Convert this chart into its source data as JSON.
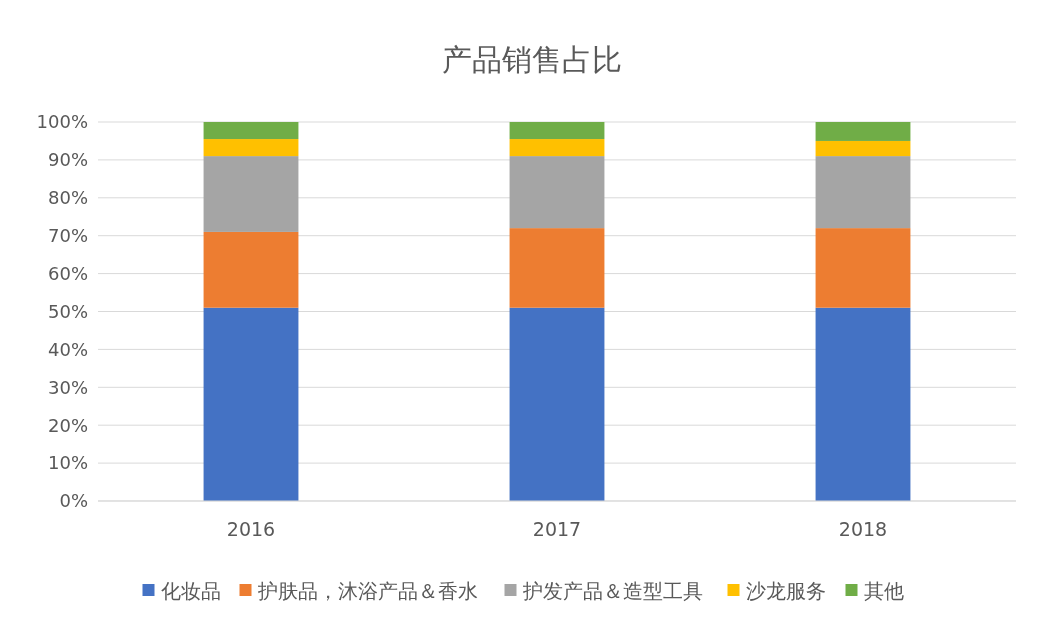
{
  "chart_data": {
    "type": "bar",
    "title": "产品销售占比",
    "stacked": true,
    "categories": [
      "2016",
      "2017",
      "2018"
    ],
    "series": [
      {
        "name": "化妆品",
        "color": "#4472c4",
        "values": [
          51,
          51,
          51
        ]
      },
      {
        "name": "护肤品，沐浴产品＆香水",
        "color": "#ed7d31",
        "values": [
          20,
          21,
          21
        ]
      },
      {
        "name": "护发产品＆造型工具",
        "color": "#a5a5a5",
        "values": [
          20,
          19,
          19
        ]
      },
      {
        "name": "沙龙服务",
        "color": "#ffc000",
        "values": [
          4.5,
          4.5,
          4
        ]
      },
      {
        "name": "其他",
        "color": "#70ad47",
        "values": [
          4.5,
          4.5,
          5
        ]
      }
    ],
    "ylim": [
      0,
      100
    ],
    "yticks": [
      {
        "value": 0,
        "label": "0%"
      },
      {
        "value": 10,
        "label": "10%"
      },
      {
        "value": 20,
        "label": "20%"
      },
      {
        "value": 30,
        "label": "30%"
      },
      {
        "value": 40,
        "label": "40%"
      },
      {
        "value": 50,
        "label": "50%"
      },
      {
        "value": 60,
        "label": "60%"
      },
      {
        "value": 70,
        "label": "70%"
      },
      {
        "value": 80,
        "label": "80%"
      },
      {
        "value": 90,
        "label": "90%"
      },
      {
        "value": 100,
        "label": "100%"
      }
    ],
    "grid": "y",
    "legend": "bottom"
  }
}
